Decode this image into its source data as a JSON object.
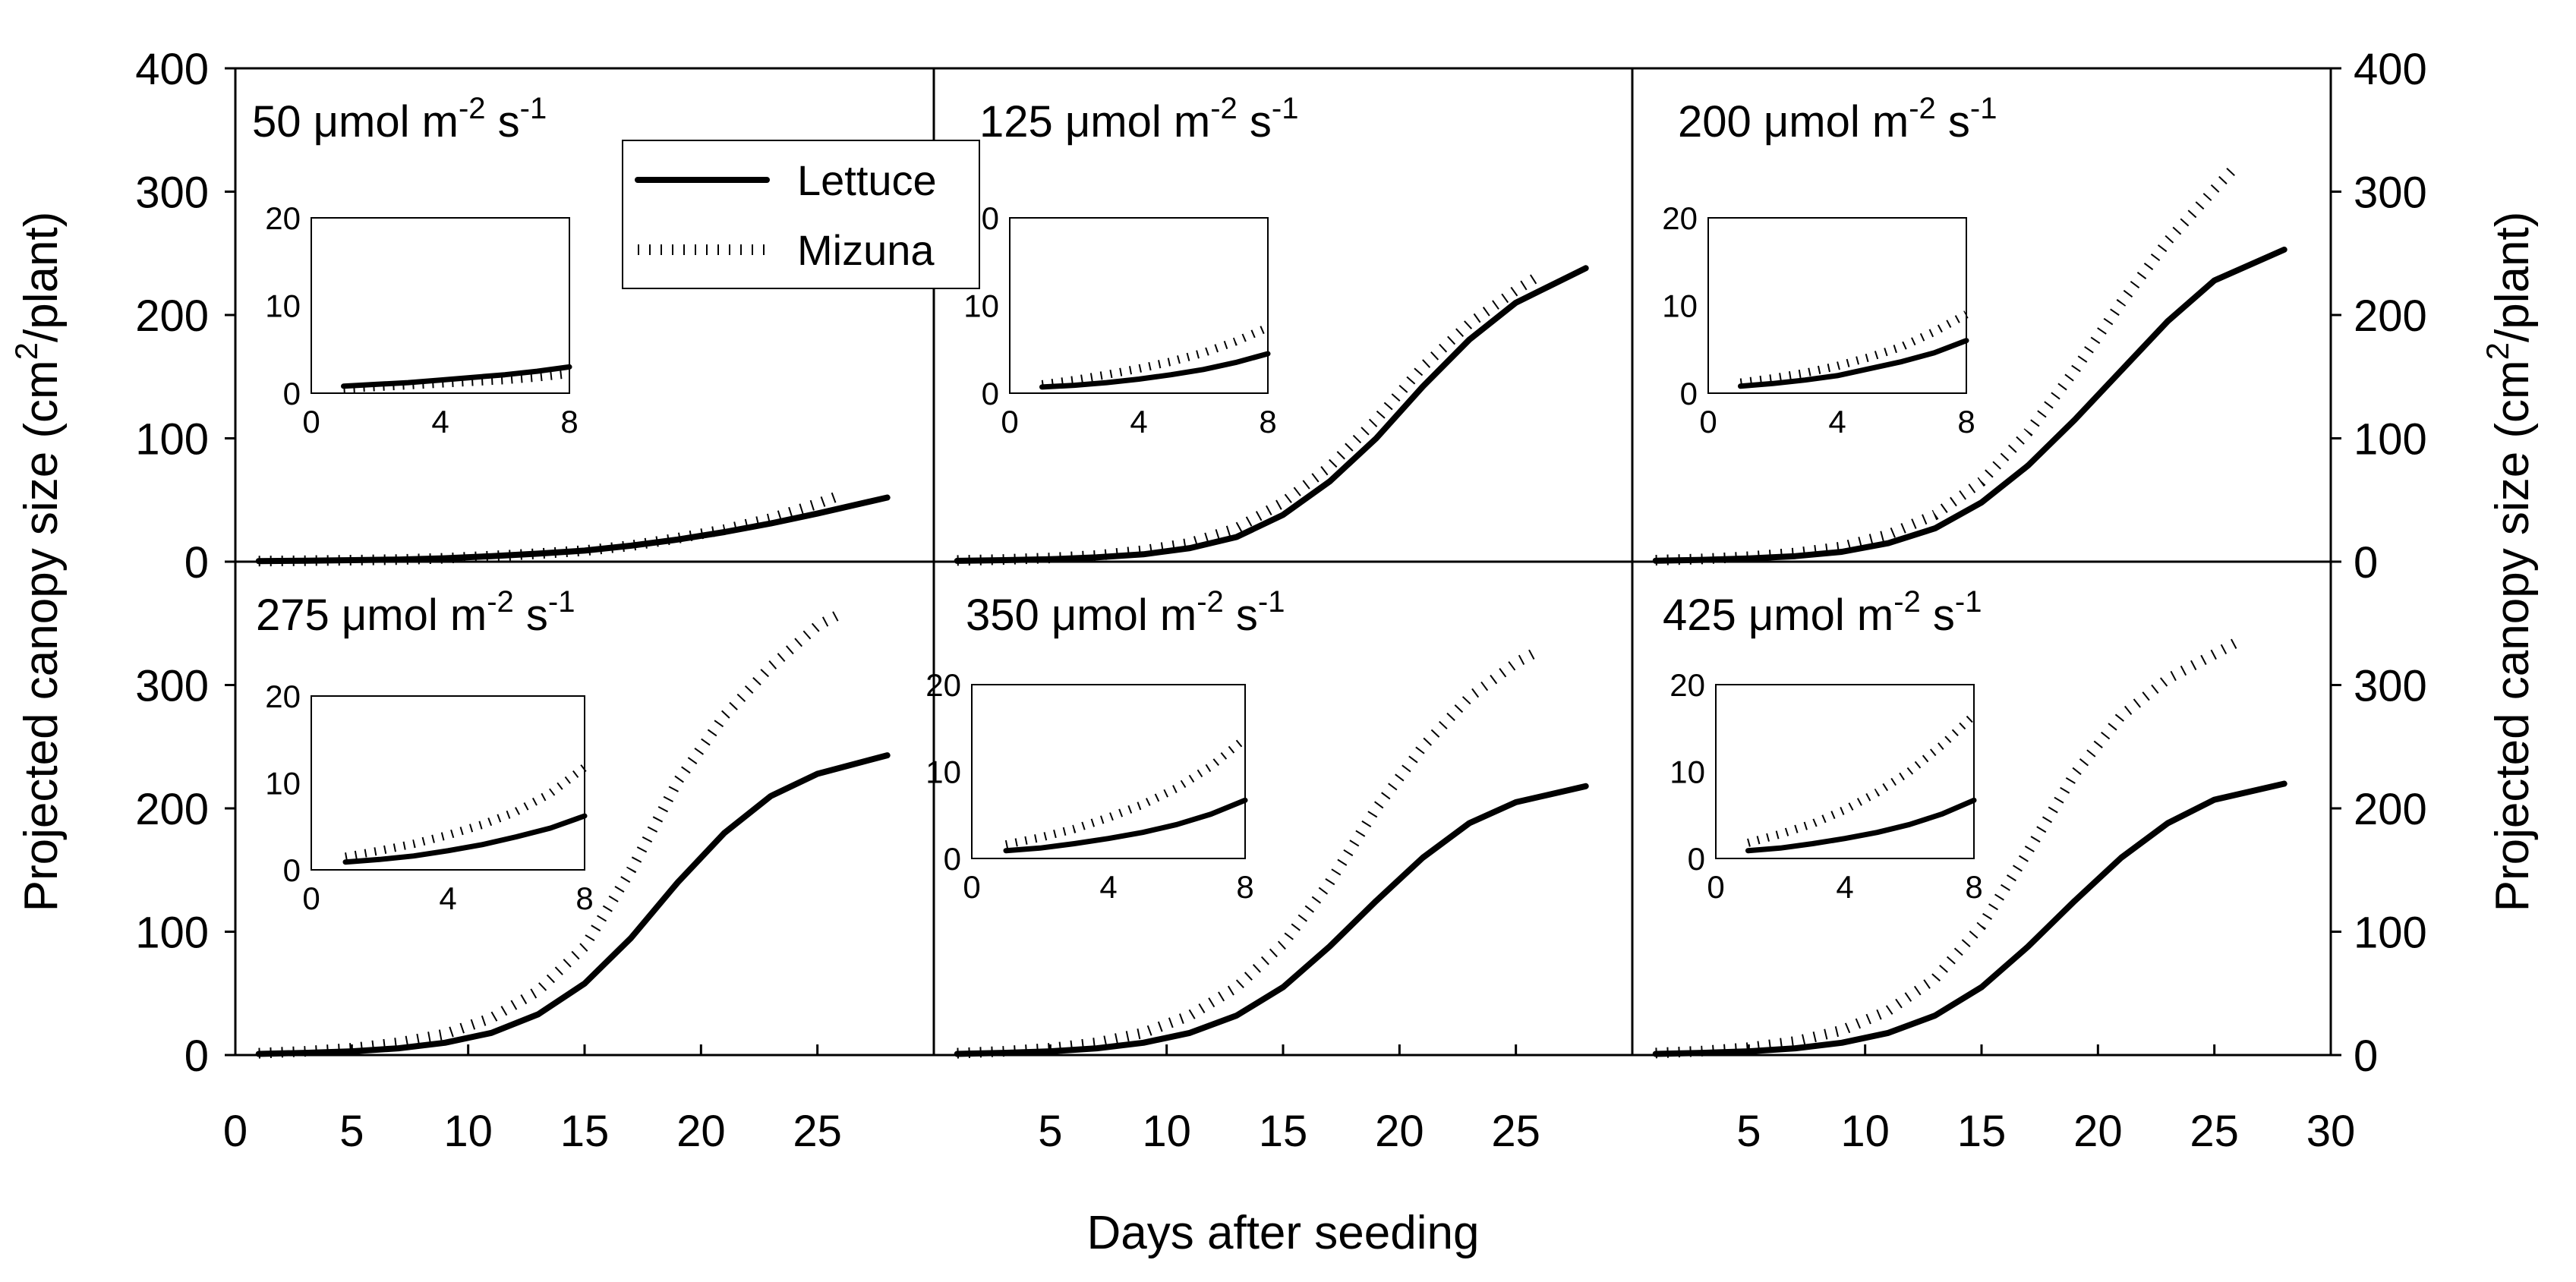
{
  "chart_data": {
    "type": "line",
    "layout": "2x3 panel grid with inset plots",
    "xlabel": "Days after seeding",
    "ylabel_left": "Projected canopy size (cm²/plant)",
    "ylabel_right": "Projected canopy size (cm²/plant)",
    "xlim": [
      0,
      30
    ],
    "ylim": [
      0,
      400
    ],
    "x_ticks": [
      "0",
      "5",
      "10",
      "15",
      "20",
      "25",
      "30"
    ],
    "y_ticks_top": [
      "0",
      "100",
      "200",
      "300",
      "400"
    ],
    "y_ticks_bottom": [
      "0",
      "100",
      "200",
      "300"
    ],
    "inset": {
      "xlim": [
        0,
        8
      ],
      "ylim": [
        0,
        20
      ],
      "x_ticks": [
        "0",
        "4",
        "8"
      ],
      "y_ticks": [
        "0",
        "10",
        "20"
      ]
    },
    "legend": {
      "placement": "top-left panel, upper-middle",
      "entries": [
        {
          "name": "Lettuce",
          "style": "solid"
        },
        {
          "name": "Mizuna",
          "style": "dotted"
        }
      ]
    },
    "panels": [
      {
        "label": "50 μmol m-2 s-1",
        "series": [
          {
            "name": "Lettuce",
            "x": [
              1,
              3,
              5,
              7,
              9,
              11,
              13,
              15,
              17,
              19,
              21,
              23,
              25,
              28
            ],
            "y": [
              0.5,
              0.8,
              1.2,
              1.7,
              2.8,
              4.5,
              6.5,
              9,
              13,
              18,
              24,
              31,
              39,
              52
            ]
          },
          {
            "name": "Mizuna",
            "x": [
              1,
              3,
              5,
              7,
              9,
              11,
              13,
              15,
              17,
              19,
              21,
              23,
              25,
              26
            ],
            "y": [
              0.5,
              0.8,
              1.2,
              1.7,
              2.8,
              4.5,
              6.5,
              9,
              13,
              19,
              26,
              35,
              47,
              54
            ]
          }
        ],
        "inset_series": [
          {
            "name": "Lettuce",
            "x": [
              1,
              2,
              3,
              4,
              5,
              6,
              7,
              8
            ],
            "y": [
              0.8,
              1,
              1.2,
              1.5,
              1.8,
              2.1,
              2.5,
              3
            ]
          },
          {
            "name": "Mizuna",
            "x": [
              1,
              2,
              3,
              4,
              5,
              6,
              7,
              8
            ],
            "y": [
              0.5,
              0.7,
              0.9,
              1.1,
              1.3,
              1.5,
              1.8,
              2.2
            ]
          }
        ]
      },
      {
        "label": "125 μmol m-2 s-1",
        "series": [
          {
            "name": "Lettuce",
            "x": [
              1,
              3,
              5,
              7,
              9,
              11,
              13,
              15,
              17,
              19,
              21,
              23,
              25,
              28
            ],
            "y": [
              0.7,
              1.2,
              2,
              3.5,
              6,
              11,
              20,
              38,
              65,
              100,
              142,
              180,
              210,
              238
            ]
          },
          {
            "name": "Mizuna",
            "x": [
              1,
              3,
              5,
              7,
              9,
              11,
              13,
              15,
              17,
              19,
              21,
              23,
              25,
              26
            ],
            "y": [
              1,
              1.8,
              3,
              5,
              9,
              15,
              27,
              48,
              77,
              115,
              158,
              193,
              220,
              232
            ]
          }
        ],
        "inset_series": [
          {
            "name": "Lettuce",
            "x": [
              1,
              2,
              3,
              4,
              5,
              6,
              7,
              8
            ],
            "y": [
              0.7,
              0.9,
              1.2,
              1.6,
              2.1,
              2.7,
              3.5,
              4.5
            ]
          },
          {
            "name": "Mizuna",
            "x": [
              1,
              2,
              3,
              4,
              5,
              6,
              7,
              8
            ],
            "y": [
              1,
              1.5,
              2.1,
              2.8,
              3.6,
              4.6,
              5.9,
              7.5
            ]
          }
        ]
      },
      {
        "label": "200 μmol m-2 s-1",
        "series": [
          {
            "name": "Lettuce",
            "x": [
              1,
              3,
              5,
              7,
              9,
              11,
              13,
              15,
              17,
              19,
              21,
              23,
              25,
              28
            ],
            "y": [
              0.8,
              1.5,
              2.6,
              4.5,
              8,
              15,
              27,
              48,
              78,
              115,
              155,
              195,
              228,
              253
            ]
          },
          {
            "name": "Mizuna",
            "x": [
              1,
              3,
              5,
              7,
              9,
              11,
              13,
              15,
              17,
              19,
              21,
              23,
              25,
              26
            ],
            "y": [
              1.2,
              2.2,
              4,
              7,
              12,
              22,
              38,
              65,
              105,
              155,
              210,
              260,
              302,
              322
            ]
          }
        ],
        "inset_series": [
          {
            "name": "Lettuce",
            "x": [
              1,
              2,
              3,
              4,
              5,
              6,
              7,
              8
            ],
            "y": [
              0.8,
              1.1,
              1.5,
              2,
              2.8,
              3.6,
              4.6,
              6
            ]
          },
          {
            "name": "Mizuna",
            "x": [
              1,
              2,
              3,
              4,
              5,
              6,
              7,
              8
            ],
            "y": [
              1.2,
              1.7,
              2.3,
              3.1,
              4.1,
              5.3,
              7,
              9
            ]
          }
        ]
      },
      {
        "label": "275 μmol m-2 s-1",
        "series": [
          {
            "name": "Lettuce",
            "x": [
              1,
              3,
              5,
              7,
              9,
              11,
              13,
              15,
              17,
              19,
              21,
              23,
              25,
              28
            ],
            "y": [
              0.9,
              1.8,
              3,
              5.5,
              10,
              18,
              33,
              58,
              95,
              140,
              180,
              210,
              228,
              243
            ]
          },
          {
            "name": "Mizuna",
            "x": [
              1,
              3,
              5,
              7,
              9,
              11,
              13,
              15,
              17,
              19,
              21,
              23,
              25,
              26
            ],
            "y": [
              1.5,
              3,
              5.5,
              10,
              17,
              30,
              52,
              88,
              150,
              222,
              275,
              315,
              348,
              358
            ]
          }
        ],
        "inset_series": [
          {
            "name": "Lettuce",
            "x": [
              1,
              2,
              3,
              4,
              5,
              6,
              7,
              8
            ],
            "y": [
              0.9,
              1.2,
              1.6,
              2.2,
              2.9,
              3.8,
              4.8,
              6.2
            ]
          },
          {
            "name": "Mizuna",
            "x": [
              1,
              2,
              3,
              4,
              5,
              6,
              7,
              8
            ],
            "y": [
              1.5,
              2.2,
              3,
              4,
              5.2,
              6.7,
              8.8,
              11.8
            ]
          }
        ]
      },
      {
        "label": "350 μmol m-2 s-1",
        "series": [
          {
            "name": "Lettuce",
            "x": [
              1,
              3,
              5,
              7,
              9,
              11,
              13,
              15,
              17,
              19,
              21,
              23,
              25,
              28
            ],
            "y": [
              0.9,
              1.8,
              3,
              5.5,
              10,
              18,
              32,
              55,
              88,
              125,
              160,
              188,
              205,
              218
            ]
          },
          {
            "name": "Mizuna",
            "x": [
              1,
              3,
              5,
              7,
              9,
              11,
              13,
              15,
              17,
              19,
              21,
              23,
              25,
              26
            ],
            "y": [
              1.5,
              3,
              5.5,
              10,
              18,
              32,
              55,
              90,
              140,
              200,
              250,
              290,
              318,
              328
            ]
          }
        ],
        "inset_series": [
          {
            "name": "Lettuce",
            "x": [
              1,
              2,
              3,
              4,
              5,
              6,
              7,
              8
            ],
            "y": [
              0.9,
              1.2,
              1.7,
              2.3,
              3,
              3.9,
              5.1,
              6.7
            ]
          },
          {
            "name": "Mizuna",
            "x": [
              1,
              2,
              3,
              4,
              5,
              6,
              7,
              8
            ],
            "y": [
              1.6,
              2.4,
              3.4,
              4.7,
              6.2,
              8.1,
              10.6,
              13.8
            ]
          }
        ]
      },
      {
        "label": "425 μmol m-2 s-1",
        "series": [
          {
            "name": "Lettuce",
            "x": [
              1,
              3,
              5,
              7,
              9,
              11,
              13,
              15,
              17,
              19,
              21,
              23,
              25,
              28
            ],
            "y": [
              0.9,
              1.8,
              3,
              5.5,
              10,
              18,
              32,
              55,
              88,
              125,
              160,
              188,
              207,
              220
            ]
          },
          {
            "name": "Mizuna",
            "x": [
              1,
              3,
              5,
              7,
              9,
              11,
              13,
              15,
              17,
              19,
              21,
              23,
              25,
              26
            ],
            "y": [
              1.6,
              3.2,
              6,
              11,
              20,
              36,
              62,
              105,
              165,
              228,
              275,
              305,
              325,
              335
            ]
          }
        ],
        "inset_series": [
          {
            "name": "Lettuce",
            "x": [
              1,
              2,
              3,
              4,
              5,
              6,
              7,
              8
            ],
            "y": [
              0.9,
              1.2,
              1.7,
              2.3,
              3,
              3.9,
              5.1,
              6.7
            ]
          },
          {
            "name": "Mizuna",
            "x": [
              1,
              2,
              3,
              4,
              5,
              6,
              7,
              8
            ],
            "y": [
              1.8,
              2.8,
              4,
              5.6,
              7.6,
              10,
              13,
              16.5
            ]
          }
        ]
      }
    ]
  }
}
